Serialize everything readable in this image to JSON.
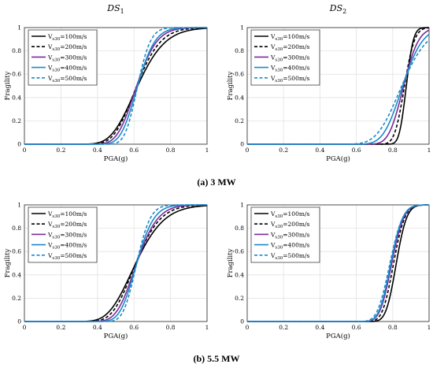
{
  "column_titles": [
    {
      "base": "DS",
      "sub": "1"
    },
    {
      "base": "DS",
      "sub": "2"
    }
  ],
  "captions": [
    "(a) 3 MW",
    "(b) 5.5 MW"
  ],
  "legend_entries": [
    {
      "base": "V",
      "sub": "s30",
      "rest": "=100m/s",
      "color": "#000000",
      "dash": "solid"
    },
    {
      "base": "V",
      "sub": "s30",
      "rest": "=200m/s",
      "color": "#000000",
      "dash": "dashed"
    },
    {
      "base": "V",
      "sub": "s30",
      "rest": "=300m/s",
      "color": "#7B2A9C",
      "dash": "solid"
    },
    {
      "base": "V",
      "sub": "s30",
      "rest": "=400m/s",
      "color": "#1C8AC9",
      "dash": "solid"
    },
    {
      "base": "V",
      "sub": "s30",
      "rest": "=500m/s",
      "color": "#1C8AC9",
      "dash": "dashed"
    }
  ],
  "chart_data": [
    {
      "type": "line",
      "id": "a-ds1",
      "title": "DS1",
      "xlabel": "PGA(g)",
      "ylabel": "Fragility",
      "xlim": [
        0,
        1
      ],
      "ylim": [
        0,
        1
      ],
      "grid": true,
      "legend": "top-left",
      "xticks": [
        "0",
        "0.2",
        "0.4",
        "0.6",
        "0.8",
        "1"
      ],
      "yticks": [
        "0",
        "0.2",
        "0.4",
        "0.6",
        "0.8",
        "1"
      ],
      "series": [
        {
          "name": "Vs30=100m/s",
          "median": 0.62,
          "beta": 0.19
        },
        {
          "name": "Vs30=200m/s",
          "median": 0.615,
          "beta": 0.165
        },
        {
          "name": "Vs30=300m/s",
          "median": 0.615,
          "beta": 0.14
        },
        {
          "name": "Vs30=400m/s",
          "median": 0.62,
          "beta": 0.12
        },
        {
          "name": "Vs30=500m/s",
          "median": 0.62,
          "beta": 0.09
        }
      ]
    },
    {
      "type": "line",
      "id": "a-ds2",
      "title": "DS2",
      "xlabel": "PGA(g)",
      "ylabel": "Fragility",
      "xlim": [
        0,
        1
      ],
      "ylim": [
        0,
        1
      ],
      "grid": true,
      "legend": "top-left",
      "xticks": [
        "0",
        "0.2",
        "0.4",
        "0.6",
        "0.8",
        "1"
      ],
      "yticks": [
        "0",
        "0.2",
        "0.4",
        "0.6",
        "0.8",
        "1"
      ],
      "series": [
        {
          "name": "Vs30=100m/s",
          "median": 0.875,
          "beta": 0.035
        },
        {
          "name": "Vs30=200m/s",
          "median": 0.865,
          "beta": 0.05
        },
        {
          "name": "Vs30=300m/s",
          "median": 0.86,
          "beta": 0.075
        },
        {
          "name": "Vs30=400m/s",
          "median": 0.855,
          "beta": 0.1
        },
        {
          "name": "Vs30=500m/s",
          "median": 0.85,
          "beta": 0.13
        }
      ]
    },
    {
      "type": "line",
      "id": "b-ds1",
      "title": "DS1",
      "xlabel": "PGA(g)",
      "ylabel": "Fragility",
      "xlim": [
        0,
        1
      ],
      "ylim": [
        0,
        1
      ],
      "grid": true,
      "legend": "top-left",
      "xticks": [
        "0",
        "0.2",
        "0.4",
        "0.6",
        "0.8",
        "1"
      ],
      "yticks": [
        "0",
        "0.2",
        "0.4",
        "0.6",
        "0.8",
        "1"
      ],
      "series": [
        {
          "name": "Vs30=100m/s",
          "median": 0.61,
          "beta": 0.2
        },
        {
          "name": "Vs30=200m/s",
          "median": 0.61,
          "beta": 0.17
        },
        {
          "name": "Vs30=300m/s",
          "median": 0.615,
          "beta": 0.145
        },
        {
          "name": "Vs30=400m/s",
          "median": 0.615,
          "beta": 0.12
        },
        {
          "name": "Vs30=500m/s",
          "median": 0.615,
          "beta": 0.095
        }
      ]
    },
    {
      "type": "line",
      "id": "b-ds2",
      "title": "DS2",
      "xlabel": "PGA(g)",
      "ylabel": "Fragility",
      "xlim": [
        0,
        1
      ],
      "ylim": [
        0,
        1
      ],
      "grid": true,
      "legend": "top-left",
      "xticks": [
        "0",
        "0.2",
        "0.4",
        "0.6",
        "0.8",
        "1"
      ],
      "yticks": [
        "0",
        "0.2",
        "0.4",
        "0.6",
        "0.8",
        "1"
      ],
      "series": [
        {
          "name": "Vs30=100m/s",
          "median": 0.82,
          "beta": 0.055
        },
        {
          "name": "Vs30=200m/s",
          "median": 0.805,
          "beta": 0.06
        },
        {
          "name": "Vs30=300m/s",
          "median": 0.795,
          "beta": 0.065
        },
        {
          "name": "Vs30=400m/s",
          "median": 0.79,
          "beta": 0.065
        },
        {
          "name": "Vs30=500m/s",
          "median": 0.785,
          "beta": 0.07
        }
      ]
    }
  ]
}
